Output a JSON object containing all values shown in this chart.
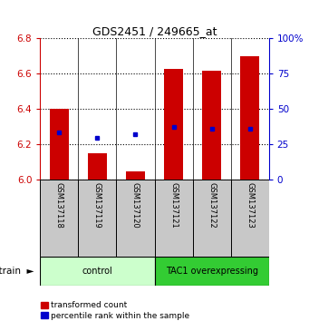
{
  "title": "GDS2451 / 249665_at",
  "samples": [
    "GSM137118",
    "GSM137119",
    "GSM137120",
    "GSM137121",
    "GSM137122",
    "GSM137123"
  ],
  "red_values": [
    6.4,
    6.15,
    6.05,
    6.63,
    6.62,
    6.7
  ],
  "blue_values": [
    6.27,
    6.24,
    6.26,
    6.3,
    6.29,
    6.29
  ],
  "y_min": 6.0,
  "y_max": 6.8,
  "y_ticks_red": [
    6.0,
    6.2,
    6.4,
    6.6,
    6.8
  ],
  "y_ticks_blue": [
    0,
    25,
    50,
    75,
    100
  ],
  "groups": [
    {
      "label": "control",
      "start": 0,
      "end": 3,
      "color": "#ccffcc"
    },
    {
      "label": "TAC1 overexpressing",
      "start": 3,
      "end": 6,
      "color": "#33cc33"
    }
  ],
  "bar_color": "#cc0000",
  "dot_color": "#0000cc",
  "bar_width": 0.5,
  "tick_label_color_left": "#cc0000",
  "tick_label_color_right": "#0000cc",
  "legend_red_label": "transformed count",
  "legend_blue_label": "percentile rank within the sample",
  "strain_label": "strain",
  "background_plot": "#ffffff",
  "background_sample": "#c8c8c8"
}
